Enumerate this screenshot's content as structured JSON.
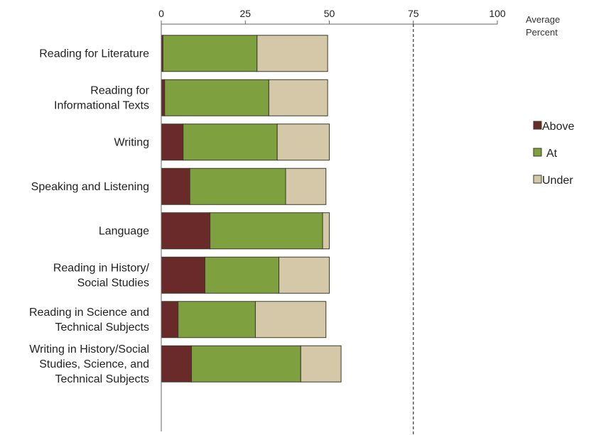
{
  "chart_data": {
    "type": "bar",
    "orientation": "horizontal",
    "stacked": true,
    "x_axis_title": [
      "Average",
      "Percent"
    ],
    "xlim": [
      0,
      100
    ],
    "x_ticks": [
      0,
      25,
      50,
      75,
      100
    ],
    "reference_line": {
      "value": 75,
      "style": "dashed"
    },
    "categories": [
      [
        "Reading for Literature"
      ],
      [
        "Reading for",
        "Informational Texts"
      ],
      [
        "Writing"
      ],
      [
        "Speaking and Listening"
      ],
      [
        "Language"
      ],
      [
        "Reading in History/",
        "Social Studies"
      ],
      [
        "Reading in Science and",
        "Technical Subjects"
      ],
      [
        "Writing in History/Social",
        "Studies, Science, and",
        "Technical Subjects"
      ]
    ],
    "series": [
      {
        "name": "Above",
        "color": "#6b2a2a",
        "values": [
          0.5,
          1,
          6.5,
          8.5,
          14.5,
          13,
          5,
          9
        ]
      },
      {
        "name": "At",
        "color": "#7fa03e",
        "values": [
          28,
          31,
          28,
          28.5,
          33.5,
          22,
          23,
          32.5
        ]
      },
      {
        "name": "Under",
        "color": "#d4c8a8",
        "values": [
          21,
          17.5,
          15.5,
          12,
          2,
          15,
          21,
          12
        ]
      }
    ],
    "legend_position": "right",
    "grid": false
  }
}
